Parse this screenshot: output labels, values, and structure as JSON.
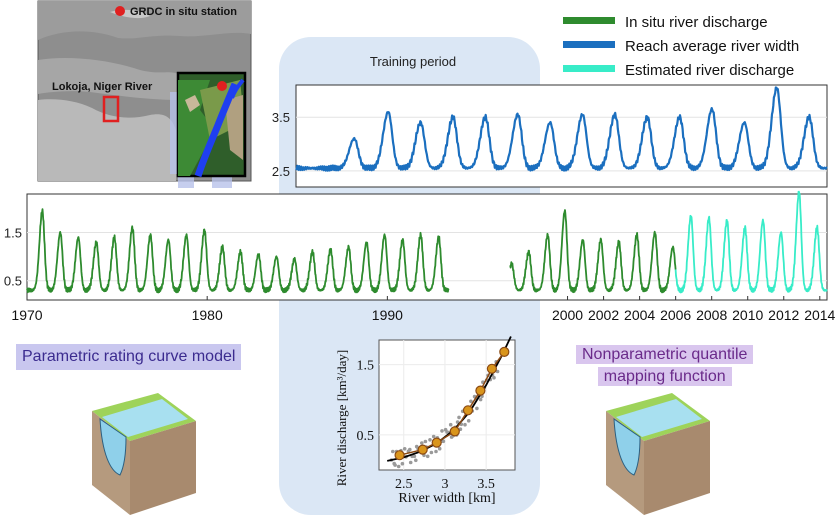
{
  "legend": {
    "items": [
      {
        "label": "In situ river discharge",
        "color": "#2e8b2e"
      },
      {
        "label": "Reach average river width",
        "color": "#1b6fbf"
      },
      {
        "label": "Estimated river discharge",
        "color": "#38ecc8"
      }
    ]
  },
  "map": {
    "station_label": "GRDC in situ station",
    "location_label": "Lokoja, Niger River",
    "marker_color": "#e02020"
  },
  "training_label": "Training period",
  "captions": {
    "left": "Parametric rating curve model",
    "right_line1": "Nonparametric quantile",
    "right_line2": "mapping function"
  },
  "colors": {
    "in_situ": "#2e8b2e",
    "width": "#1b6fbf",
    "estimated": "#38ecc8",
    "training_bg": "#dbe7f5",
    "curve_point": "#d9951c",
    "curve_line": "#8b4a14"
  },
  "chart_data": [
    {
      "type": "line",
      "id": "width_series",
      "series": [
        {
          "name": "Reach average river width",
          "color": "#1b6fbf"
        }
      ],
      "x_range": [
        1998.0,
        2014.4
      ],
      "ylim": [
        2.2,
        4.1
      ],
      "yticks": [
        "3.5",
        "2.5"
      ],
      "ytick_values": [
        3.5,
        2.5
      ],
      "annual_peaks": [
        [
          1999.8,
          3.1
        ],
        [
          2000.85,
          3.6
        ],
        [
          2001.85,
          3.4
        ],
        [
          2002.85,
          3.5
        ],
        [
          2003.85,
          3.5
        ],
        [
          2004.85,
          3.55
        ],
        [
          2005.85,
          3.4
        ],
        [
          2006.85,
          3.55
        ],
        [
          2007.85,
          3.55
        ],
        [
          2008.85,
          3.5
        ],
        [
          2009.85,
          3.5
        ],
        [
          2010.85,
          3.65
        ],
        [
          2011.85,
          3.4
        ],
        [
          2012.85,
          4.05
        ],
        [
          2013.85,
          3.5
        ]
      ],
      "baseline": 2.55
    },
    {
      "type": "line",
      "id": "discharge_series",
      "series": [
        {
          "name": "In situ river discharge",
          "color": "#2e8b2e",
          "ranges": [
            [
              1970.0,
              1993.4
            ],
            [
              1996.8,
              2006.0
            ]
          ]
        },
        {
          "name": "Estimated river discharge",
          "color": "#38ecc8",
          "ranges": [
            [
              2006.0,
              2014.4
            ]
          ]
        }
      ],
      "x_range": [
        1970.0,
        2014.4
      ],
      "ylim": [
        0.1,
        2.3
      ],
      "yticks": [
        "1.5",
        "0.5"
      ],
      "ytick_values": [
        1.5,
        0.5
      ],
      "xticks": [
        "1970",
        "1980",
        "1990",
        "2000",
        "2002",
        "2004",
        "2006",
        "2008",
        "2010",
        "2012",
        "2014"
      ],
      "xtick_values": [
        1970,
        1980,
        1990,
        2000,
        2002,
        2004,
        2006,
        2008,
        2010,
        2012,
        2014
      ],
      "annual_peaks": [
        [
          1970.85,
          1.95
        ],
        [
          1971.85,
          1.5
        ],
        [
          1972.85,
          1.4
        ],
        [
          1973.85,
          1.3
        ],
        [
          1974.85,
          1.4
        ],
        [
          1975.85,
          1.6
        ],
        [
          1976.85,
          1.45
        ],
        [
          1977.85,
          1.35
        ],
        [
          1978.85,
          1.45
        ],
        [
          1979.85,
          1.55
        ],
        [
          1980.85,
          1.2
        ],
        [
          1981.85,
          1.1
        ],
        [
          1982.85,
          1.05
        ],
        [
          1983.85,
          1.0
        ],
        [
          1984.85,
          0.95
        ],
        [
          1985.85,
          1.1
        ],
        [
          1986.85,
          1.15
        ],
        [
          1987.85,
          1.2
        ],
        [
          1988.85,
          1.3
        ],
        [
          1989.85,
          1.45
        ],
        [
          1990.85,
          1.35
        ],
        [
          1991.85,
          1.45
        ],
        [
          1992.85,
          1.4
        ],
        [
          1996.9,
          0.85
        ],
        [
          1997.85,
          1.1
        ],
        [
          1998.9,
          1.45
        ],
        [
          1999.85,
          1.95
        ],
        [
          2000.85,
          1.35
        ],
        [
          2001.85,
          1.35
        ],
        [
          2002.85,
          1.3
        ],
        [
          2003.85,
          1.45
        ],
        [
          2004.85,
          1.5
        ],
        [
          2005.85,
          1.2
        ],
        [
          2006.85,
          1.85
        ],
        [
          2007.85,
          1.8
        ],
        [
          2008.85,
          1.75
        ],
        [
          2009.85,
          1.6
        ],
        [
          2010.85,
          1.75
        ],
        [
          2011.85,
          1.5
        ],
        [
          2012.85,
          2.35
        ],
        [
          2013.85,
          1.6
        ]
      ],
      "baseline": 0.3
    },
    {
      "type": "scatter",
      "id": "rating_curve",
      "xlabel": "River width [km]",
      "ylabel": "River discharge [km³/day]",
      "xlim": [
        2.2,
        3.85
      ],
      "ylim": [
        0.0,
        1.85
      ],
      "xticks": [
        "2.5",
        "3",
        "3.5"
      ],
      "xtick_values": [
        2.5,
        3.0,
        3.5
      ],
      "yticks": [
        "1.5",
        "0.5"
      ],
      "ytick_values": [
        1.5,
        0.5
      ],
      "quantile_points": [
        {
          "x": 2.45,
          "y": 0.21
        },
        {
          "x": 2.73,
          "y": 0.29
        },
        {
          "x": 2.9,
          "y": 0.39
        },
        {
          "x": 3.12,
          "y": 0.55
        },
        {
          "x": 3.28,
          "y": 0.85
        },
        {
          "x": 3.43,
          "y": 1.13
        },
        {
          "x": 3.57,
          "y": 1.44
        },
        {
          "x": 3.72,
          "y": 1.68
        }
      ],
      "fitted_curve": [
        {
          "x": 2.3,
          "y": 0.13
        },
        {
          "x": 2.5,
          "y": 0.18
        },
        {
          "x": 2.7,
          "y": 0.26
        },
        {
          "x": 2.9,
          "y": 0.38
        },
        {
          "x": 3.1,
          "y": 0.56
        },
        {
          "x": 3.3,
          "y": 0.83
        },
        {
          "x": 3.5,
          "y": 1.21
        },
        {
          "x": 3.7,
          "y": 1.65
        },
        {
          "x": 3.8,
          "y": 1.9
        }
      ]
    }
  ]
}
